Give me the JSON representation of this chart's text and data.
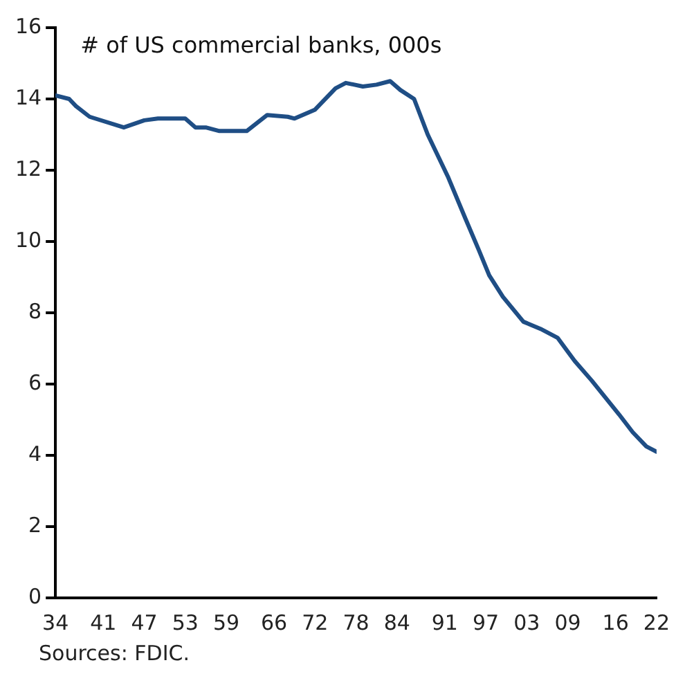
{
  "chart_data": {
    "type": "line",
    "title": "# of US commercial banks, 000s",
    "x": [
      1934,
      1936,
      1937,
      1939,
      1944,
      1947,
      1949,
      1953,
      1954.5,
      1956,
      1958,
      1962,
      1965,
      1968,
      1969,
      1972,
      1975,
      1976.5,
      1979,
      1981,
      1983,
      1984.5,
      1986.5,
      1988.5,
      1991.5,
      1994,
      1996,
      1997.5,
      1999.5,
      2002.5,
      2005,
      2007.5,
      2010,
      2012.5,
      2016.5,
      2018.5,
      2020.5,
      2022
    ],
    "series": [
      {
        "color": "#1f4e85",
        "values": [
          14.1,
          14.0,
          13.8,
          13.5,
          13.2,
          13.4,
          13.45,
          13.45,
          13.2,
          13.2,
          13.1,
          13.1,
          13.55,
          13.5,
          13.45,
          13.7,
          14.3,
          14.45,
          14.35,
          14.4,
          14.5,
          14.25,
          14.0,
          13.0,
          11.8,
          10.65,
          9.75,
          9.05,
          8.45,
          7.75,
          7.55,
          7.3,
          6.65,
          6.1,
          5.15,
          4.65,
          4.25,
          4.1
        ]
      }
    ],
    "xlim": [
      1934,
      2022
    ],
    "xticks": [
      {
        "value": 1934,
        "label": "34"
      },
      {
        "value": 1941,
        "label": "41"
      },
      {
        "value": 1947,
        "label": "47"
      },
      {
        "value": 1953,
        "label": "53"
      },
      {
        "value": 1959,
        "label": "59"
      },
      {
        "value": 1966,
        "label": "66"
      },
      {
        "value": 1972,
        "label": "72"
      },
      {
        "value": 1978,
        "label": "78"
      },
      {
        "value": 1984,
        "label": "84"
      },
      {
        "value": 1991,
        "label": "91"
      },
      {
        "value": 1997,
        "label": "97"
      },
      {
        "value": 2003,
        "label": "03"
      },
      {
        "value": 2009,
        "label": "09"
      },
      {
        "value": 2016,
        "label": "16"
      },
      {
        "value": 2022,
        "label": "22"
      }
    ],
    "ylim": [
      0,
      16
    ],
    "yticks": [
      0,
      2,
      4,
      6,
      8,
      10,
      12,
      14,
      16
    ],
    "grid": false,
    "legend": false,
    "marker": "none",
    "line_style": "solid",
    "annotations": [
      "Sources: FDIC."
    ]
  }
}
